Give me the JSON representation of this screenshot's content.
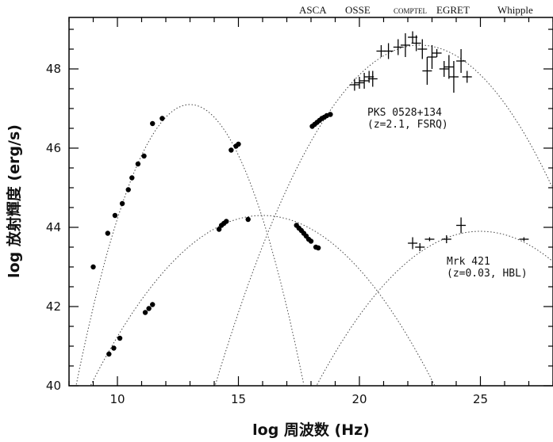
{
  "chart_data": {
    "type": "scatter",
    "title": "",
    "xlabel": "log 周波数 (Hz)",
    "ylabel": "log 放射輝度 (erg/s)",
    "xlim": [
      8,
      28
    ],
    "ylim": [
      40,
      49.3
    ],
    "xticks": [
      10,
      15,
      20,
      25
    ],
    "yticks": [
      40,
      42,
      44,
      46,
      48
    ],
    "grid": false,
    "instruments": [
      "ASCA",
      "OSSE",
      "COMPTEL",
      "EGRET",
      "Whipple"
    ],
    "annotations": [
      {
        "name": "pks-annotation",
        "lines": [
          "PKS 0528+134",
          "(z=2.1, FSRQ)"
        ]
      },
      {
        "name": "mrk-annotation",
        "lines": [
          "Mrk 421",
          "(z=0.03, HBL)"
        ]
      }
    ],
    "series": [
      {
        "name": "PKS 0528+134",
        "points": [
          {
            "x": 9.0,
            "y": 43.0
          },
          {
            "x": 9.6,
            "y": 43.85
          },
          {
            "x": 9.9,
            "y": 44.3
          },
          {
            "x": 10.2,
            "y": 44.6
          },
          {
            "x": 10.45,
            "y": 44.95
          },
          {
            "x": 10.6,
            "y": 45.25
          },
          {
            "x": 10.85,
            "y": 45.6
          },
          {
            "x": 11.1,
            "y": 45.8
          },
          {
            "x": 11.45,
            "y": 46.62
          },
          {
            "x": 11.85,
            "y": 46.75
          },
          {
            "x": 14.7,
            "y": 45.95
          },
          {
            "x": 14.9,
            "y": 46.05
          },
          {
            "x": 15.0,
            "y": 46.1
          },
          {
            "x": 18.05,
            "y": 46.55
          },
          {
            "x": 18.15,
            "y": 46.6
          },
          {
            "x": 18.25,
            "y": 46.65
          },
          {
            "x": 18.35,
            "y": 46.7
          },
          {
            "x": 18.45,
            "y": 46.75
          },
          {
            "x": 18.55,
            "y": 46.78
          },
          {
            "x": 18.65,
            "y": 46.82
          },
          {
            "x": 18.8,
            "y": 46.85
          }
        ],
        "gamma_points": [
          {
            "x": 19.8,
            "y": 47.6,
            "dy": 0.15
          },
          {
            "x": 20.0,
            "y": 47.65,
            "dy": 0.15
          },
          {
            "x": 20.2,
            "y": 47.7,
            "dy": 0.2
          },
          {
            "x": 20.4,
            "y": 47.8,
            "dy": 0.15
          },
          {
            "x": 20.55,
            "y": 47.75,
            "dy": 0.2
          },
          {
            "x": 20.9,
            "y": 48.45,
            "dy": 0.15
          },
          {
            "x": 21.2,
            "y": 48.45,
            "dy": 0.2
          },
          {
            "x": 21.6,
            "y": 48.55,
            "dy": 0.2
          },
          {
            "x": 21.9,
            "y": 48.6,
            "dy": 0.3
          },
          {
            "x": 22.2,
            "y": 48.8,
            "dy": 0.15
          },
          {
            "x": 22.35,
            "y": 48.65,
            "dy": 0.2
          },
          {
            "x": 22.6,
            "y": 48.5,
            "dy": 0.25
          },
          {
            "x": 22.8,
            "y": 47.95,
            "dy": 0.35
          },
          {
            "x": 23.0,
            "y": 48.3,
            "dy": 0.3
          },
          {
            "x": 23.2,
            "y": 48.4,
            "dy": 0.1
          },
          {
            "x": 23.5,
            "y": 48.0,
            "dy": 0.2
          },
          {
            "x": 23.7,
            "y": 48.05,
            "dy": 0.3
          },
          {
            "x": 23.9,
            "y": 47.8,
            "dy": 0.4
          },
          {
            "x": 24.2,
            "y": 48.2,
            "dy": 0.3
          },
          {
            "x": 24.45,
            "y": 47.8,
            "dy": 0.15
          }
        ],
        "curves": [
          {
            "peak_x": 13.0,
            "peak_y": 47.1,
            "k": 0.32
          },
          {
            "peak_x": 22.5,
            "peak_y": 48.6,
            "k": 0.12
          }
        ]
      },
      {
        "name": "Mrk 421",
        "points": [
          {
            "x": 9.65,
            "y": 40.8
          },
          {
            "x": 9.85,
            "y": 40.95
          },
          {
            "x": 10.1,
            "y": 41.2
          },
          {
            "x": 11.15,
            "y": 41.85
          },
          {
            "x": 11.3,
            "y": 41.95
          },
          {
            "x": 11.45,
            "y": 42.05
          },
          {
            "x": 14.2,
            "y": 43.95
          },
          {
            "x": 14.3,
            "y": 44.05
          },
          {
            "x": 14.4,
            "y": 44.1
          },
          {
            "x": 14.5,
            "y": 44.15
          },
          {
            "x": 15.4,
            "y": 44.2
          },
          {
            "x": 17.4,
            "y": 44.05
          },
          {
            "x": 17.5,
            "y": 43.98
          },
          {
            "x": 17.6,
            "y": 43.92
          },
          {
            "x": 17.7,
            "y": 43.85
          },
          {
            "x": 17.8,
            "y": 43.78
          },
          {
            "x": 17.9,
            "y": 43.7
          },
          {
            "x": 18.0,
            "y": 43.65
          },
          {
            "x": 18.2,
            "y": 43.5
          },
          {
            "x": 18.3,
            "y": 43.48
          }
        ],
        "gamma_points": [
          {
            "x": 22.2,
            "y": 43.6,
            "dy": 0.15
          },
          {
            "x": 22.5,
            "y": 43.5,
            "dy": 0.1
          },
          {
            "x": 22.9,
            "y": 43.7,
            "dy": 0.05
          },
          {
            "x": 23.6,
            "y": 43.7,
            "dy": 0.1
          },
          {
            "x": 24.2,
            "y": 44.05,
            "dy": 0.2
          },
          {
            "x": 26.8,
            "y": 43.7,
            "dy": 0.05
          }
        ],
        "curves": [
          {
            "peak_x": 16.0,
            "peak_y": 44.3,
            "k": 0.085
          },
          {
            "peak_x": 25.0,
            "peak_y": 43.9,
            "k": 0.085
          }
        ]
      }
    ]
  }
}
